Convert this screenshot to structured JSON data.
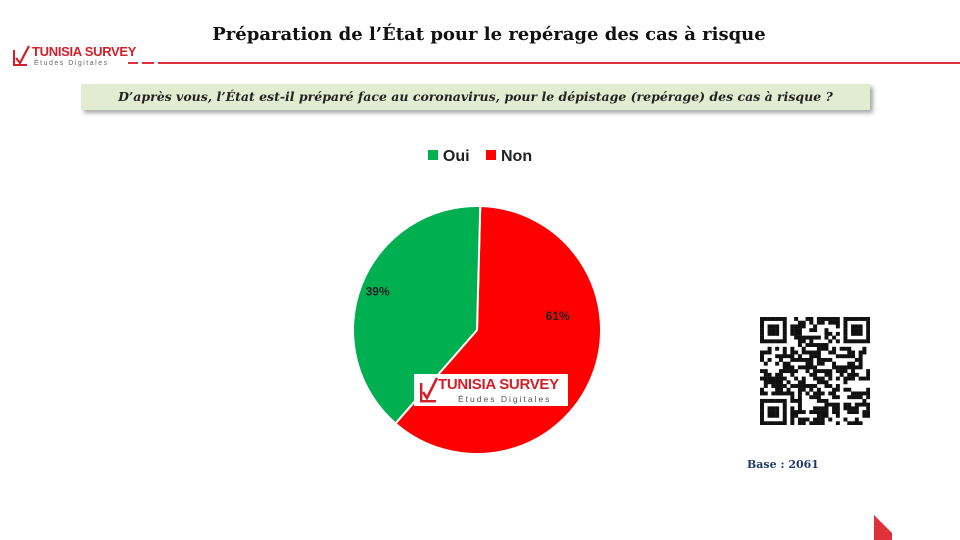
{
  "header": {
    "title": "Préparation de l’État pour le repérage des cas à risque",
    "logo": {
      "name": "TUNISIA SURVEY",
      "tagline": "Études Digitales"
    }
  },
  "question": "D’après vous, l’État est-il préparé face au coronavirus, pour le dépistage (repérage) des cas à risque ?",
  "colors": {
    "oui": "#00b050",
    "non": "#ff0000",
    "brand_red": "#d0202a",
    "question_bg": "#e2ecd0"
  },
  "chart_data": {
    "type": "pie",
    "title": "",
    "legend_position": "top",
    "slices": [
      {
        "name": "Oui",
        "value": 39,
        "label": "39%",
        "color": "#00b050"
      },
      {
        "name": "Non",
        "value": 61,
        "label": "61%",
        "color": "#ff0000"
      }
    ]
  },
  "watermark": {
    "name": "TUNISIA SURVEY",
    "tagline": "Études Digitales"
  },
  "footer": {
    "base": "Base :  2061"
  }
}
